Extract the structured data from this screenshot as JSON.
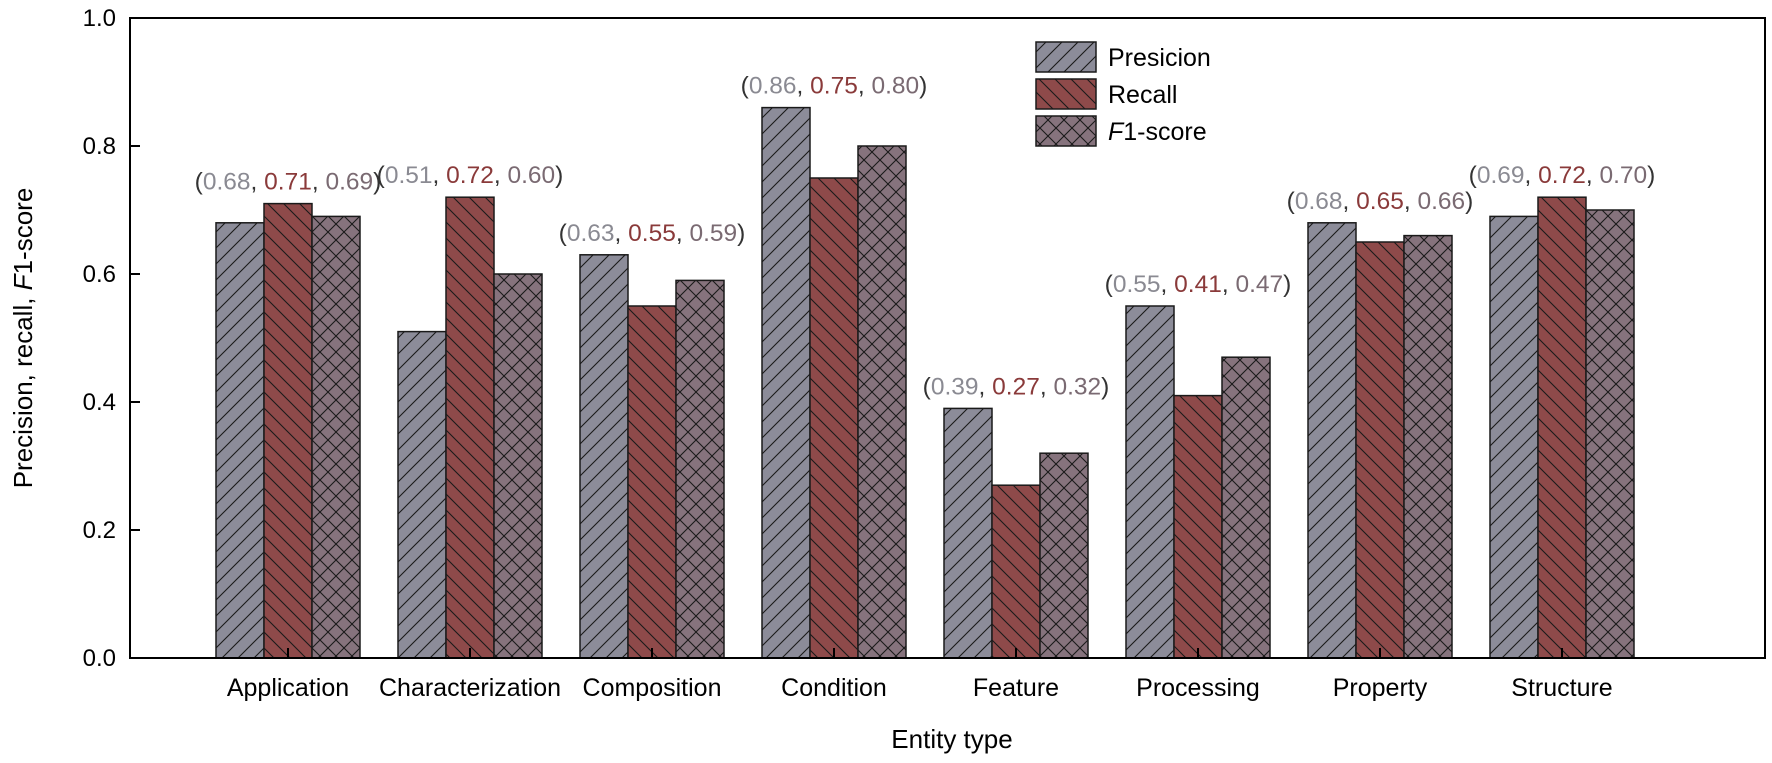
{
  "chart_data": {
    "type": "bar",
    "title": "",
    "xlabel": "Entity type",
    "ylabel": {
      "prefix": "Precision, recall, ",
      "italic": "F",
      "suffix": "1-score"
    },
    "ylim": [
      0,
      1.0
    ],
    "yticks": [
      "0.0",
      "0.2",
      "0.4",
      "0.6",
      "0.8",
      "1.0"
    ],
    "grid": false,
    "legend_position": "top-center",
    "categories": [
      "Application",
      "Characterization",
      "Composition",
      "Condition",
      "Feature",
      "Processing",
      "Property",
      "Structure"
    ],
    "series": [
      {
        "name": "Presicion",
        "legend": {
          "prefix": "Presicion",
          "italic": "",
          "suffix": ""
        },
        "pattern": "diagonal-right",
        "fill": "#8c8c99",
        "label_color": "#8a8a92",
        "values": [
          0.68,
          0.51,
          0.63,
          0.86,
          0.39,
          0.55,
          0.68,
          0.69
        ],
        "labels": [
          "0.68",
          "0.51",
          "0.63",
          "0.86",
          "0.39",
          "0.55",
          "0.68",
          "0.69"
        ]
      },
      {
        "name": "Recall",
        "legend": {
          "prefix": "Recall",
          "italic": "",
          "suffix": ""
        },
        "pattern": "diagonal-left",
        "fill": "#8e4a4a",
        "label_color": "#8a3a3a",
        "values": [
          0.71,
          0.72,
          0.55,
          0.75,
          0.27,
          0.41,
          0.65,
          0.72
        ],
        "labels": [
          "0.71",
          "0.72",
          "0.55",
          "0.75",
          "0.27",
          "0.41",
          "0.65",
          "0.72"
        ]
      },
      {
        "name": "F1-score",
        "legend": {
          "prefix": "",
          "italic": "F",
          "suffix": "1-score"
        },
        "pattern": "crosshatch",
        "fill": "#86737d",
        "label_color": "#7a6a72",
        "values": [
          0.69,
          0.6,
          0.59,
          0.8,
          0.32,
          0.47,
          0.66,
          0.7
        ],
        "labels": [
          "0.69",
          "0.60",
          "0.59",
          "0.80",
          "0.32",
          "0.47",
          "0.66",
          "0.70"
        ]
      }
    ],
    "annotation_format": {
      "open": "(",
      "sep": ", ",
      "close": ")"
    }
  }
}
